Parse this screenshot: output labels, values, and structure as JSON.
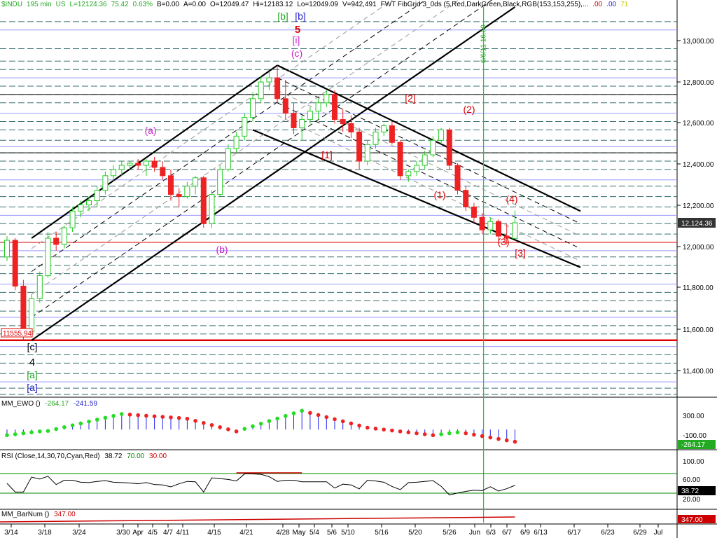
{
  "header": {
    "symbol": "$INDU",
    "interval": "195 min",
    "country": "US",
    "last": "L=12124.36",
    "change": "75.42",
    "change_pct": "0.63%",
    "bid": "B=0.00",
    "ask": "A=0.00",
    "open": "O=12049.47",
    "high": "Hi=12183.12",
    "low": "Lo=12049.09",
    "volume": "V=942,491",
    "study": "FWT FibGrid 3_0ds (5,Red,DarkGreen,Black,RGB(153,153,255),...",
    "extra1": ".00",
    "extra2": ".00",
    "extra3": "71"
  },
  "colors": {
    "up": "#22cc22",
    "down": "#ee2222",
    "grid_teal": "#3a6f6f",
    "fib_blue": "#9999ff",
    "ewo_dots_up": "#22dd22",
    "ewo_dots_down": "#ee2222",
    "ewo_bars": "#2222ee",
    "rsi_line": "#000000",
    "rsi_upper": "#008800",
    "rsi_lower": "#cc0000",
    "vline": "#22cc22"
  },
  "price_scale": {
    "labels": [
      "13,000.00",
      "12,800.00",
      "12,600.00",
      "12,400.00",
      "12,200.00",
      "12,000.00",
      "11,800.00",
      "11,600.00",
      "11,400.00"
    ],
    "current": "12,124.36"
  },
  "x_axis": {
    "labels": [
      "3/14",
      "3/18",
      "3/24",
      "3/30",
      "Apr",
      "4/5",
      "4/7",
      "4/11",
      "4/15",
      "4/21",
      "4/28",
      "May",
      "5/4",
      "5/6",
      "5/10",
      "5/16",
      "5/20",
      "5/26",
      "Jun",
      "6/3",
      "6/7",
      "6/9",
      "6/13",
      "6/17",
      "6/23",
      "6/29",
      "Jul"
    ]
  },
  "annotations": {
    "low_value": "11555.94",
    "vertical_line_label": "6/6/11 16:00"
  },
  "wave_labels": [
    {
      "text": "[b]",
      "color": "#22aa22"
    },
    {
      "text": "[b]",
      "color": "#2222cc"
    },
    {
      "text": "5",
      "color": "#dd0000"
    },
    {
      "text": "[i]",
      "color": "#cc22cc"
    },
    {
      "text": "(c)",
      "color": "#cc22cc"
    },
    {
      "text": "(a)",
      "color": "#cc22cc"
    },
    {
      "text": "(b)",
      "color": "#cc22cc"
    },
    {
      "text": "[1]",
      "color": "#dd0000"
    },
    {
      "text": "[2]",
      "color": "#dd0000"
    },
    {
      "text": "(1)",
      "color": "#dd0000"
    },
    {
      "text": "(2)",
      "color": "#dd0000"
    },
    {
      "text": "(3)",
      "color": "#dd0000"
    },
    {
      "text": "(4)",
      "color": "#dd0000"
    },
    {
      "text": "[3]",
      "color": "#dd0000"
    },
    {
      "text": "[c]",
      "color": "#000000"
    },
    {
      "text": "4",
      "color": "#000000"
    },
    {
      "text": "[a]",
      "color": "#22aa22"
    },
    {
      "text": "[a]",
      "color": "#2222cc"
    }
  ],
  "ewo_panel": {
    "title": "MM_EWO ()",
    "value1": "-264.17",
    "value2": "-241.59",
    "scale": [
      "300.00",
      "-100.00"
    ],
    "current": "-264.17"
  },
  "rsi_panel": {
    "title": "RSI (Close,14,30,70,Cyan,Red)",
    "value": "38.72",
    "upper": "70.00",
    "lower": "30.00",
    "scale": [
      "100.00",
      "60.00",
      "20.00"
    ],
    "current": "38.72"
  },
  "barnum_panel": {
    "title": "MM_BarNum ()",
    "value": "347.00",
    "current": "347.00"
  },
  "chart_data": {
    "type": "candlestick",
    "title": "$INDU - 195 min",
    "ylim": [
      11290,
      13160
    ],
    "x": [
      "3/14",
      "3/15",
      "3/16",
      "3/17",
      "3/18",
      "3/21",
      "3/22",
      "3/23",
      "3/24",
      "3/25",
      "3/28",
      "3/29",
      "3/30",
      "3/31",
      "4/1",
      "4/4",
      "4/5",
      "4/6",
      "4/7",
      "4/8",
      "4/11",
      "4/12",
      "4/13",
      "4/14",
      "4/15",
      "4/18",
      "4/19",
      "4/20",
      "4/21",
      "4/25",
      "4/26",
      "4/27",
      "4/28",
      "4/29",
      "5/2",
      "5/3",
      "5/4",
      "5/5",
      "5/6",
      "5/9",
      "5/10",
      "5/11",
      "5/12",
      "5/13",
      "5/16",
      "5/17",
      "5/18",
      "5/19",
      "5/20",
      "5/23",
      "5/24",
      "5/25",
      "5/26",
      "5/27",
      "5/31",
      "6/1",
      "6/2",
      "6/3",
      "6/6",
      "6/7",
      "6/8",
      "6/9",
      "6/10"
    ],
    "series": [
      {
        "name": "$INDU",
        "ohlc": [
          [
            11960,
            12060,
            11940,
            12040
          ],
          [
            12040,
            12050,
            11800,
            11820
          ],
          [
            11820,
            11850,
            11560,
            11600
          ],
          [
            11600,
            11780,
            11580,
            11760
          ],
          [
            11760,
            11890,
            11740,
            11870
          ],
          [
            11870,
            12080,
            11860,
            12050
          ],
          [
            12050,
            12080,
            11990,
            12020
          ],
          [
            12020,
            12110,
            12000,
            12100
          ],
          [
            12100,
            12200,
            12080,
            12180
          ],
          [
            12180,
            12230,
            12150,
            12210
          ],
          [
            12210,
            12250,
            12180,
            12230
          ],
          [
            12230,
            12300,
            12200,
            12280
          ],
          [
            12280,
            12370,
            12260,
            12350
          ],
          [
            12350,
            12400,
            12320,
            12380
          ],
          [
            12380,
            12420,
            12350,
            12400
          ],
          [
            12400,
            12420,
            12380,
            12410
          ],
          [
            12410,
            12430,
            12380,
            12400
          ],
          [
            12400,
            12430,
            12350,
            12420
          ],
          [
            12420,
            12440,
            12370,
            12390
          ],
          [
            12390,
            12420,
            12330,
            12350
          ],
          [
            12350,
            12380,
            12230,
            12260
          ],
          [
            12260,
            12290,
            12200,
            12250
          ],
          [
            12250,
            12320,
            12240,
            12300
          ],
          [
            12300,
            12350,
            12260,
            12340
          ],
          [
            12340,
            12350,
            12100,
            12120
          ],
          [
            12120,
            12280,
            12100,
            12260
          ],
          [
            12260,
            12400,
            12250,
            12380
          ],
          [
            12380,
            12500,
            12370,
            12480
          ],
          [
            12480,
            12560,
            12460,
            12540
          ],
          [
            12540,
            12650,
            12520,
            12630
          ],
          [
            12630,
            12750,
            12610,
            12720
          ],
          [
            12720,
            12830,
            12700,
            12800
          ],
          [
            12800,
            12850,
            12760,
            12820
          ],
          [
            12820,
            12870,
            12700,
            12720
          ],
          [
            12720,
            12810,
            12620,
            12650
          ],
          [
            12650,
            12700,
            12550,
            12580
          ],
          [
            12580,
            12640,
            12520,
            12620
          ],
          [
            12620,
            12680,
            12600,
            12660
          ],
          [
            12660,
            12720,
            12620,
            12700
          ],
          [
            12700,
            12760,
            12680,
            12740
          ],
          [
            12740,
            12760,
            12600,
            12620
          ],
          [
            12620,
            12670,
            12560,
            12600
          ],
          [
            12600,
            12640,
            12530,
            12560
          ],
          [
            12560,
            12580,
            12380,
            12420
          ],
          [
            12420,
            12520,
            12400,
            12500
          ],
          [
            12500,
            12580,
            12480,
            12560
          ],
          [
            12560,
            12600,
            12540,
            12590
          ],
          [
            12590,
            12610,
            12500,
            12510
          ],
          [
            12510,
            12520,
            12330,
            12350
          ],
          [
            12350,
            12380,
            12320,
            12370
          ],
          [
            12370,
            12420,
            12350,
            12400
          ],
          [
            12400,
            12470,
            12380,
            12450
          ],
          [
            12450,
            12540,
            12440,
            12520
          ],
          [
            12520,
            12580,
            12500,
            12570
          ],
          [
            12570,
            12580,
            12380,
            12400
          ],
          [
            12400,
            12410,
            12260,
            12280
          ],
          [
            12280,
            12300,
            12180,
            12200
          ],
          [
            12200,
            12220,
            12120,
            12150
          ],
          [
            12150,
            12170,
            12070,
            12090
          ],
          [
            12090,
            12150,
            12070,
            12130
          ],
          [
            12130,
            12140,
            12040,
            12060
          ],
          [
            12060,
            12120,
            12020,
            12050
          ],
          [
            12049,
            12183,
            12049,
            12124
          ]
        ]
      }
    ],
    "horizontal_lines": [
      13090,
      13050,
      12960,
      12900,
      12860,
      12820,
      12780,
      12740,
      12700,
      12650,
      12610,
      12570,
      12520,
      12490,
      12460,
      12420,
      12380,
      12330,
      12300,
      12250,
      12200,
      12160,
      12120,
      12070,
      12030,
      11990,
      11960,
      11920,
      11880,
      11830,
      11790,
      11750,
      11700,
      11670,
      11630,
      11590,
      11560,
      11530,
      11490,
      11450,
      11400,
      11360,
      11330,
      11300
    ],
    "red_lines": [
      12030,
      11560
    ],
    "trend_lines": [
      {
        "x0": 3,
        "y0": 12050,
        "x1": 33,
        "y1": 12880
      },
      {
        "x0": 3,
        "y0": 11560,
        "x1": 62,
        "y1": 13160
      },
      {
        "x0": 33,
        "y0": 12880,
        "x1": 70,
        "y1": 12180
      },
      {
        "x0": 30,
        "y0": 12570,
        "x1": 70,
        "y1": 11910
      }
    ],
    "vertical_marker_index": 58
  }
}
